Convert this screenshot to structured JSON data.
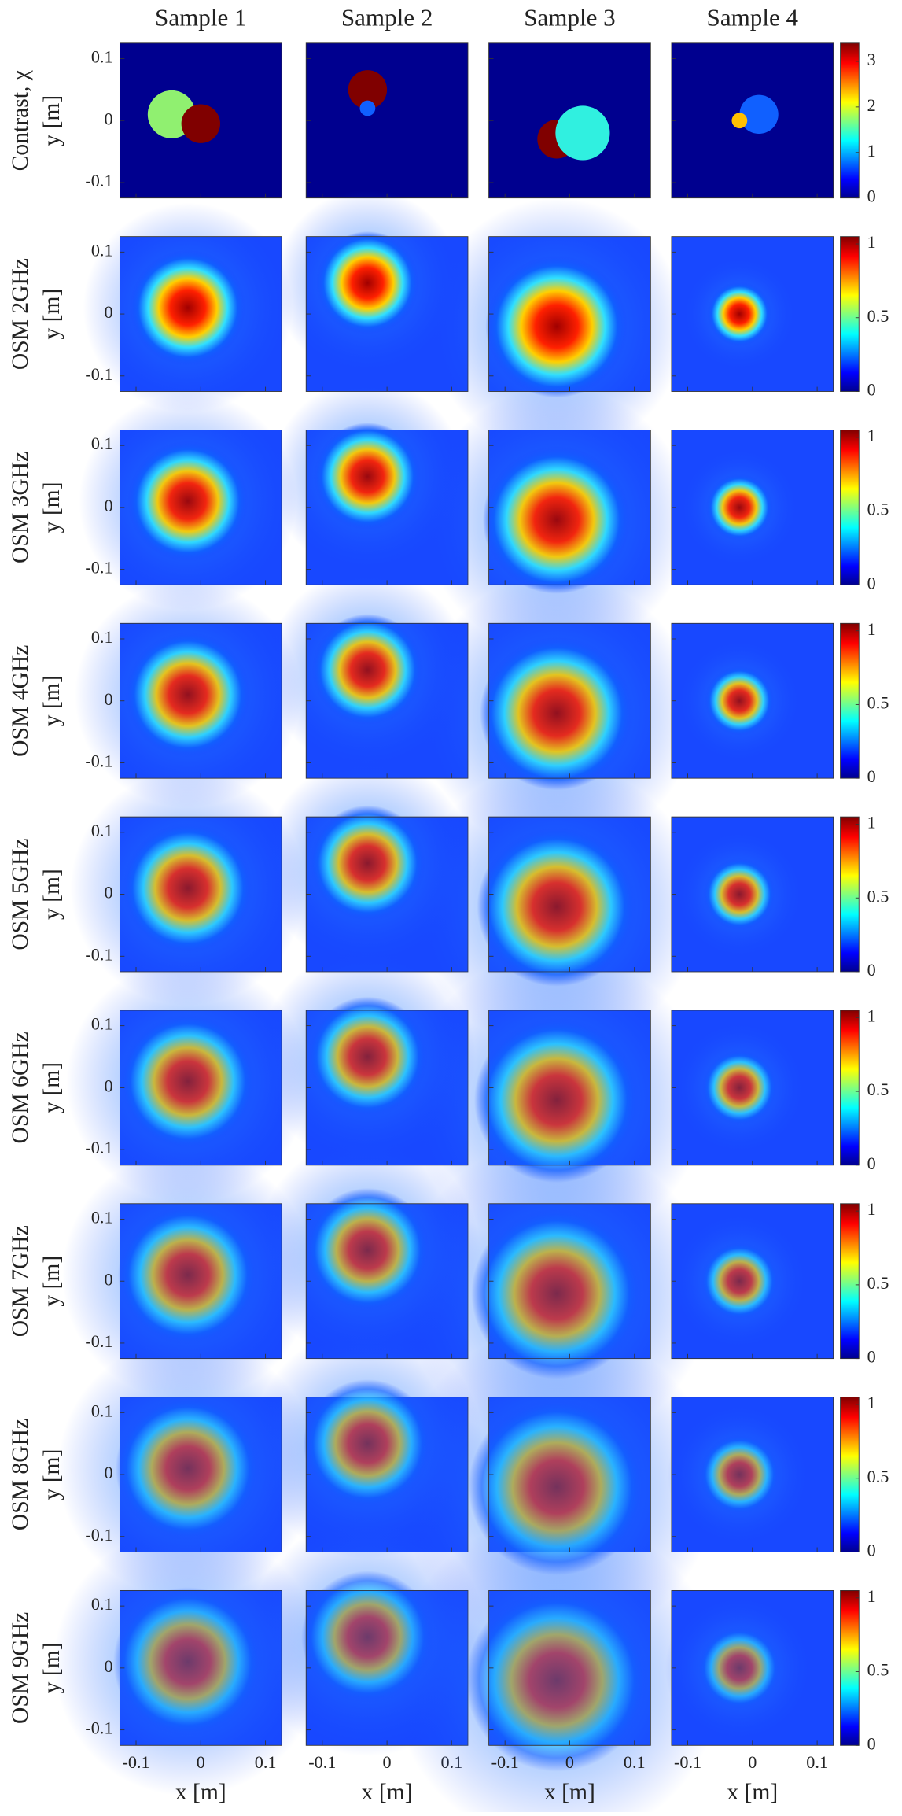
{
  "chart_data": {
    "type": "heatmap",
    "columns": [
      "Sample 1",
      "Sample 2",
      "Sample 3",
      "Sample 4"
    ],
    "xlabel": "x [m]",
    "ylabel": "y [m]",
    "xlim": [
      -0.125,
      0.125
    ],
    "ylim": [
      -0.125,
      0.125
    ],
    "xticks": [
      -0.1,
      0,
      0.1
    ],
    "yticks": [
      -0.1,
      0,
      0.1
    ],
    "rows": [
      {
        "label": "Contrast, χ",
        "clim": [
          0,
          3.4
        ],
        "cticks": [
          0,
          1,
          2,
          3
        ]
      },
      {
        "label": "OSM 2GHz",
        "clim": [
          0,
          1.05
        ],
        "cticks": [
          0,
          0.5,
          1
        ]
      },
      {
        "label": "OSM 3GHz",
        "clim": [
          0,
          1.05
        ],
        "cticks": [
          0,
          0.5,
          1
        ]
      },
      {
        "label": "OSM 4GHz",
        "clim": [
          0,
          1.05
        ],
        "cticks": [
          0,
          0.5,
          1
        ]
      },
      {
        "label": "OSM 5GHz",
        "clim": [
          0,
          1.05
        ],
        "cticks": [
          0,
          0.5,
          1
        ]
      },
      {
        "label": "OSM 6GHz",
        "clim": [
          0,
          1.05
        ],
        "cticks": [
          0,
          0.5,
          1
        ]
      },
      {
        "label": "OSM 7GHz",
        "clim": [
          0,
          1.05
        ],
        "cticks": [
          0,
          0.5,
          1
        ]
      },
      {
        "label": "OSM 8GHz",
        "clim": [
          0,
          1.05
        ],
        "cticks": [
          0,
          0.5,
          1
        ]
      },
      {
        "label": "OSM 9GHz",
        "clim": [
          0,
          1.05
        ],
        "cticks": [
          0,
          0.5,
          1
        ]
      }
    ]
  }
}
